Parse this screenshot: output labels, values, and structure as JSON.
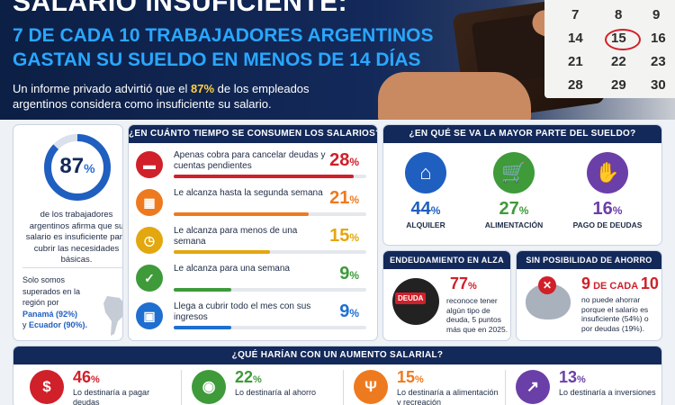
{
  "header": {
    "title": "SALARIO INSUFICIENTE:",
    "subtitle_line1": "7 DE CADA 10 TRABAJADORES ARGENTINOS",
    "subtitle_line2": "GASTAN SU SUELDO EN MENOS DE 14 DÍAS",
    "desc_part1": "Un informe privado advirtió que el ",
    "desc_highlight": "87%",
    "desc_part2": " de los empleados",
    "desc_line2": "argentinos considera como insuficiente su salario.",
    "calendar_numbers": [
      "7",
      "8",
      "9",
      "14",
      "15",
      "16",
      "21",
      "22",
      "23",
      "28",
      "29",
      "30"
    ]
  },
  "left_card": {
    "percent": "87",
    "percent_sign": "%",
    "percent_value": 87,
    "text": "de los trabajadores argentinos afirma que su salario es insuficiente para cubrir las necesidades básicas.",
    "region_intro": "Solo somos superados en la región por",
    "region_1": "Panamá (92%)",
    "region_connector": "y",
    "region_2": "Ecuador (90%).",
    "region_end": "."
  },
  "time_card": {
    "title": "¿EN CUÁNTO TIEMPO SE CONSUMEN LOS SALARIOS?",
    "rows": [
      {
        "text": "Apenas cobra para cancelar deudas y cuentas pendientes",
        "pct": "28",
        "value": 28,
        "color": "#d0202a",
        "icon": "card-icon"
      },
      {
        "text": "Le alcanza hasta la segunda semana",
        "pct": "21",
        "value": 21,
        "color": "#ee7a1f",
        "icon": "calendar-icon"
      },
      {
        "text": "Le alcanza para menos de una semana",
        "pct": "15",
        "value": 15,
        "color": "#e3a70f",
        "icon": "clock-icon"
      },
      {
        "text": "Le alcanza para una semana",
        "pct": "9",
        "value": 9,
        "color": "#3f9a3a",
        "icon": "calendar-check-icon"
      },
      {
        "text": "Llega a cubrir todo el mes con sus ingresos",
        "pct": "9",
        "value": 9,
        "color": "#1f6fd0",
        "icon": "wallet-icon"
      }
    ]
  },
  "spend_card": {
    "title": "¿EN QUÉ SE VA LA MAYOR PARTE DEL SUELDO?",
    "items": [
      {
        "pct": "44",
        "label": "ALQUILER",
        "color": "#1f5fc0",
        "icon": "house-icon"
      },
      {
        "pct": "27",
        "label": "ALIMENTACIÓN",
        "color": "#3f9a3a",
        "icon": "cart-icon"
      },
      {
        "pct": "16",
        "label": "PAGO DE DEUDAS",
        "color": "#6b3fa8",
        "icon": "money-hand-icon"
      }
    ]
  },
  "debt_card": {
    "title": "ENDEUDAMIENTO EN ALZA",
    "badge": "DEUDA",
    "pct": "77",
    "text": "reconoce tener algún tipo de deuda, 5 puntos más que en 2025."
  },
  "saving_card": {
    "title": "SIN POSIBILIDAD DE AHORRO",
    "big_a": "9",
    "big_mid": " DE CADA ",
    "big_b": "10",
    "text": "no puede ahorrar porque el salario es insuficiente (54%) o por deudas (19%)."
  },
  "raise_card": {
    "title": "¿QUÉ HARÍAN CON UN AUMENTO SALARIAL?",
    "items": [
      {
        "pct": "46",
        "text": "Lo destinaría a pagar deudas",
        "color": "#d0202a",
        "icon": "dollar-doc-icon"
      },
      {
        "pct": "22",
        "text": "Lo destinaría al ahorro",
        "color": "#3f9a3a",
        "icon": "piggy-icon"
      },
      {
        "pct": "15",
        "text": "Lo destinaría a alimentación y recreación",
        "color": "#ee7a1f",
        "icon": "cutlery-icon"
      },
      {
        "pct": "13",
        "text": "Lo destinaría a inversiones",
        "color": "#6b3fa8",
        "icon": "growth-icon"
      }
    ]
  }
}
